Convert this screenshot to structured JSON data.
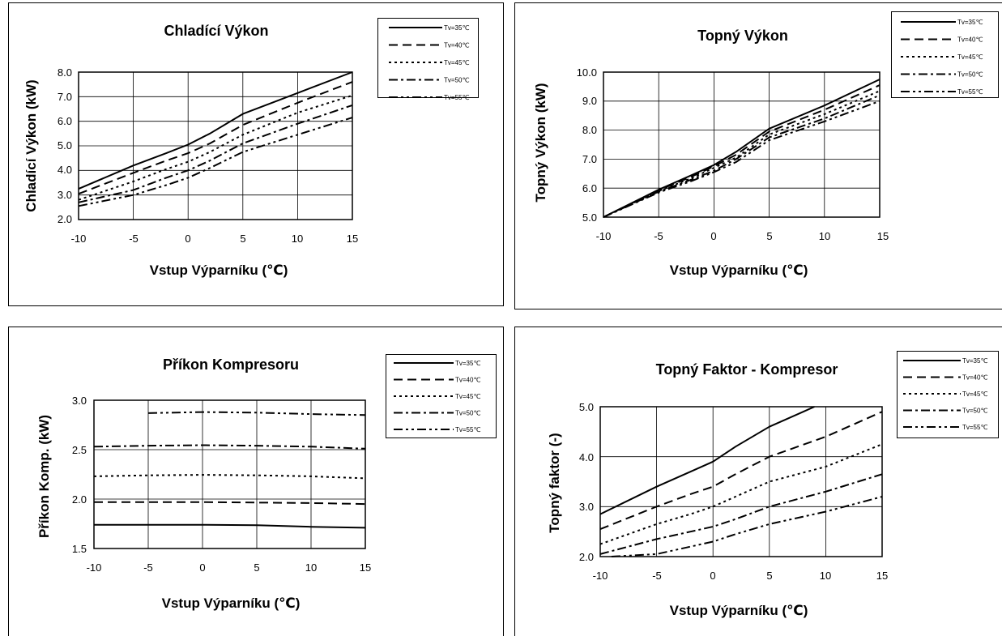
{
  "chart_data": [
    {
      "type": "line",
      "title": "Chladící Výkon",
      "xlabel": "Vstup Výparníku (℃)",
      "ylabel": "Chladící Výkon (kW)",
      "xlim": [
        -10,
        15
      ],
      "ylim": [
        2.0,
        8.0
      ],
      "x_ticks": [
        "-10",
        "-5",
        "0",
        "5",
        "10",
        "15"
      ],
      "y_ticks": [
        "2.0",
        "3.0",
        "4.0",
        "5.0",
        "6.0",
        "7.0",
        "8.0"
      ],
      "grid": true,
      "legend_position": "top-right",
      "series": [
        {
          "name": "Tv=35℃",
          "dash": "solid",
          "points": [
            [
              -10,
              3.25
            ],
            [
              -5,
              4.2
            ],
            [
              -2,
              4.7
            ],
            [
              0,
              5.05
            ],
            [
              2,
              5.5
            ],
            [
              5,
              6.3
            ],
            [
              10,
              7.15
            ],
            [
              15,
              8.0
            ]
          ]
        },
        {
          "name": "Tv=40℃",
          "dash": "dash",
          "points": [
            [
              -10,
              3.05
            ],
            [
              -5,
              3.9
            ],
            [
              -2,
              4.4
            ],
            [
              0,
              4.7
            ],
            [
              2,
              5.1
            ],
            [
              5,
              5.85
            ],
            [
              10,
              6.75
            ],
            [
              15,
              7.6
            ]
          ]
        },
        {
          "name": "Tv=45℃",
          "dash": "dot",
          "points": [
            [
              -10,
              2.8
            ],
            [
              -5,
              3.55
            ],
            [
              -2,
              4.05
            ],
            [
              0,
              4.35
            ],
            [
              2,
              4.75
            ],
            [
              5,
              5.45
            ],
            [
              10,
              6.35
            ],
            [
              15,
              7.05
            ]
          ]
        },
        {
          "name": "Tv=50℃",
          "dash": "dashdot",
          "points": [
            [
              -10,
              2.7
            ],
            [
              -5,
              3.2
            ],
            [
              -2,
              3.7
            ],
            [
              0,
              4.0
            ],
            [
              2,
              4.4
            ],
            [
              5,
              5.1
            ],
            [
              10,
              5.9
            ],
            [
              15,
              6.65
            ]
          ]
        },
        {
          "name": "Tv=55℃",
          "dash": "dashdotdot",
          "points": [
            [
              -10,
              2.55
            ],
            [
              -5,
              3.0
            ],
            [
              -2,
              3.4
            ],
            [
              0,
              3.7
            ],
            [
              2,
              4.1
            ],
            [
              5,
              4.75
            ],
            [
              10,
              5.45
            ],
            [
              15,
              6.15
            ]
          ]
        }
      ]
    },
    {
      "type": "line",
      "title": "Topný Výkon",
      "xlabel": "Vstup Výparníku (℃)",
      "ylabel": "Topný Výkon (kW)",
      "xlim": [
        -10,
        15
      ],
      "ylim": [
        5.0,
        10.0
      ],
      "x_ticks": [
        "-10",
        "-5",
        "0",
        "5",
        "10",
        "15"
      ],
      "y_ticks": [
        "5.0",
        "6.0",
        "7.0",
        "8.0",
        "9.0",
        "10.0"
      ],
      "grid": true,
      "legend_position": "top-right",
      "series": [
        {
          "name": "Tv=35℃",
          "dash": "solid",
          "points": [
            [
              -10,
              5.0
            ],
            [
              -5,
              5.95
            ],
            [
              -2,
              6.45
            ],
            [
              0,
              6.8
            ],
            [
              2,
              7.25
            ],
            [
              5,
              8.05
            ],
            [
              10,
              8.85
            ],
            [
              15,
              9.75
            ]
          ]
        },
        {
          "name": "Tv=40℃",
          "dash": "dash",
          "points": [
            [
              -10,
              5.0
            ],
            [
              -5,
              5.93
            ],
            [
              -2,
              6.4
            ],
            [
              0,
              6.75
            ],
            [
              2,
              7.15
            ],
            [
              5,
              7.95
            ],
            [
              10,
              8.7
            ],
            [
              15,
              9.55
            ]
          ]
        },
        {
          "name": "Tv=45℃",
          "dash": "dot",
          "points": [
            [
              -10,
              5.0
            ],
            [
              -5,
              5.9
            ],
            [
              -2,
              6.35
            ],
            [
              0,
              6.7
            ],
            [
              2,
              7.05
            ],
            [
              5,
              7.85
            ],
            [
              10,
              8.55
            ],
            [
              15,
              9.35
            ]
          ]
        },
        {
          "name": "Tv=50℃",
          "dash": "dashdot",
          "points": [
            [
              -10,
              5.0
            ],
            [
              -5,
              5.88
            ],
            [
              -2,
              6.3
            ],
            [
              0,
              6.6
            ],
            [
              2,
              7.0
            ],
            [
              5,
              7.75
            ],
            [
              10,
              8.4
            ],
            [
              15,
              9.2
            ]
          ]
        },
        {
          "name": "Tv=55℃",
          "dash": "dashdotdot",
          "points": [
            [
              -10,
              5.0
            ],
            [
              -5,
              5.85
            ],
            [
              -2,
              6.25
            ],
            [
              0,
              6.55
            ],
            [
              2,
              6.9
            ],
            [
              5,
              7.65
            ],
            [
              10,
              8.3
            ],
            [
              15,
              9.0
            ]
          ]
        }
      ]
    },
    {
      "type": "line",
      "title": "Příkon Kompresoru",
      "xlabel": "Vstup Výparníku (℃)",
      "ylabel": "Příkon Komp. (kW)",
      "xlim": [
        -10,
        15
      ],
      "ylim": [
        1.5,
        3.0
      ],
      "x_ticks": [
        "-10",
        "-5",
        "0",
        "5",
        "10",
        "15"
      ],
      "y_ticks": [
        "1.5",
        "2.0",
        "2.5",
        "3.0"
      ],
      "grid": true,
      "legend_position": "top-right",
      "series": [
        {
          "name": "Tv=35℃",
          "dash": "solid",
          "points": [
            [
              -10,
              1.74
            ],
            [
              -5,
              1.74
            ],
            [
              0,
              1.74
            ],
            [
              5,
              1.735
            ],
            [
              10,
              1.72
            ],
            [
              15,
              1.71
            ]
          ]
        },
        {
          "name": "Tv=40℃",
          "dash": "dash",
          "points": [
            [
              -10,
              1.97
            ],
            [
              -5,
              1.97
            ],
            [
              0,
              1.97
            ],
            [
              5,
              1.965
            ],
            [
              10,
              1.96
            ],
            [
              15,
              1.95
            ]
          ]
        },
        {
          "name": "Tv=45℃",
          "dash": "dot",
          "points": [
            [
              -10,
              2.23
            ],
            [
              -5,
              2.24
            ],
            [
              0,
              2.245
            ],
            [
              5,
              2.24
            ],
            [
              10,
              2.23
            ],
            [
              15,
              2.21
            ]
          ]
        },
        {
          "name": "Tv=50℃",
          "dash": "dashdot",
          "points": [
            [
              -10,
              2.53
            ],
            [
              -5,
              2.54
            ],
            [
              0,
              2.545
            ],
            [
              5,
              2.54
            ],
            [
              10,
              2.53
            ],
            [
              15,
              2.51
            ]
          ]
        },
        {
          "name": "Tv=55℃",
          "dash": "dashdotdot",
          "points": [
            [
              -5,
              2.87
            ],
            [
              0,
              2.88
            ],
            [
              5,
              2.875
            ],
            [
              10,
              2.86
            ],
            [
              15,
              2.85
            ]
          ]
        }
      ]
    },
    {
      "type": "line",
      "title": "Topný Faktor - Kompresor",
      "xlabel": "Vstup Výparníku (℃)",
      "ylabel": "Topný faktor (-)",
      "xlim": [
        -10,
        15
      ],
      "ylim": [
        2.0,
        5.0
      ],
      "x_ticks": [
        "-10",
        "-5",
        "0",
        "5",
        "10",
        "15"
      ],
      "y_ticks": [
        "2.0",
        "3.0",
        "4.0",
        "5.0"
      ],
      "grid": true,
      "legend_position": "top-right",
      "series": [
        {
          "name": "Tv=35℃",
          "dash": "solid",
          "points": [
            [
              -10,
              2.85
            ],
            [
              -5,
              3.4
            ],
            [
              -2,
              3.7
            ],
            [
              0,
              3.9
            ],
            [
              2,
              4.2
            ],
            [
              5,
              4.6
            ],
            [
              8,
              4.9
            ],
            [
              9,
              5.0
            ]
          ]
        },
        {
          "name": "Tv=40℃",
          "dash": "dash",
          "points": [
            [
              -10,
              2.55
            ],
            [
              -5,
              3.0
            ],
            [
              -2,
              3.25
            ],
            [
              0,
              3.4
            ],
            [
              2,
              3.65
            ],
            [
              5,
              4.0
            ],
            [
              10,
              4.4
            ],
            [
              15,
              4.9
            ]
          ]
        },
        {
          "name": "Tv=45℃",
          "dash": "dot",
          "points": [
            [
              -10,
              2.25
            ],
            [
              -5,
              2.65
            ],
            [
              -2,
              2.85
            ],
            [
              0,
              3.0
            ],
            [
              2,
              3.2
            ],
            [
              5,
              3.5
            ],
            [
              10,
              3.8
            ],
            [
              15,
              4.25
            ]
          ]
        },
        {
          "name": "Tv=50℃",
          "dash": "dashdot",
          "points": [
            [
              -10,
              2.05
            ],
            [
              -5,
              2.35
            ],
            [
              -2,
              2.5
            ],
            [
              0,
              2.6
            ],
            [
              2,
              2.75
            ],
            [
              5,
              3.0
            ],
            [
              10,
              3.3
            ],
            [
              15,
              3.65
            ]
          ]
        },
        {
          "name": "Tv=55℃",
          "dash": "dashdotdot",
          "points": [
            [
              -9,
              2.0
            ],
            [
              -5,
              2.05
            ],
            [
              -2,
              2.2
            ],
            [
              0,
              2.3
            ],
            [
              2,
              2.45
            ],
            [
              5,
              2.65
            ],
            [
              10,
              2.9
            ],
            [
              15,
              3.2
            ]
          ]
        }
      ]
    }
  ]
}
